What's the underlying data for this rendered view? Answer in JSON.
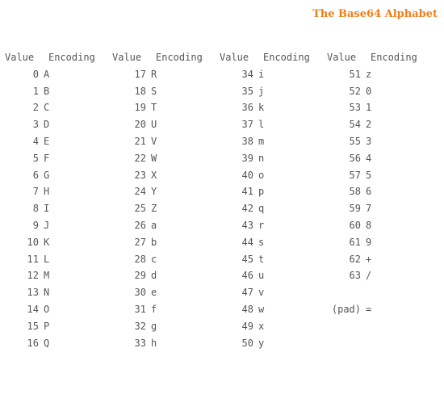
{
  "title": "The Base64 Alphabet",
  "headers": [
    "Value",
    "Encoding",
    "Value",
    "Encoding",
    "Value",
    "Encoding",
    "Value",
    "Encoding"
  ],
  "rows": [
    [
      {
        "v": "0",
        "e": "A"
      },
      {
        "v": "17",
        "e": "R"
      },
      {
        "v": "34",
        "e": "i"
      },
      {
        "v": "51",
        "e": "z"
      }
    ],
    [
      {
        "v": "1",
        "e": "B"
      },
      {
        "v": "18",
        "e": "S"
      },
      {
        "v": "35",
        "e": "j"
      },
      {
        "v": "52",
        "e": "0"
      }
    ],
    [
      {
        "v": "2",
        "e": "C"
      },
      {
        "v": "19",
        "e": "T"
      },
      {
        "v": "36",
        "e": "k"
      },
      {
        "v": "53",
        "e": "1"
      }
    ],
    [
      {
        "v": "3",
        "e": "D"
      },
      {
        "v": "20",
        "e": "U"
      },
      {
        "v": "37",
        "e": "l"
      },
      {
        "v": "54",
        "e": "2"
      }
    ],
    [
      {
        "v": "4",
        "e": "E"
      },
      {
        "v": "21",
        "e": "V"
      },
      {
        "v": "38",
        "e": "m"
      },
      {
        "v": "55",
        "e": "3"
      }
    ],
    [
      {
        "v": "5",
        "e": "F"
      },
      {
        "v": "22",
        "e": "W"
      },
      {
        "v": "39",
        "e": "n"
      },
      {
        "v": "56",
        "e": "4"
      }
    ],
    [
      {
        "v": "6",
        "e": "G"
      },
      {
        "v": "23",
        "e": "X"
      },
      {
        "v": "40",
        "e": "o"
      },
      {
        "v": "57",
        "e": "5"
      }
    ],
    [
      {
        "v": "7",
        "e": "H"
      },
      {
        "v": "24",
        "e": "Y"
      },
      {
        "v": "41",
        "e": "p"
      },
      {
        "v": "58",
        "e": "6"
      }
    ],
    [
      {
        "v": "8",
        "e": "I"
      },
      {
        "v": "25",
        "e": "Z"
      },
      {
        "v": "42",
        "e": "q"
      },
      {
        "v": "59",
        "e": "7"
      }
    ],
    [
      {
        "v": "9",
        "e": "J"
      },
      {
        "v": "26",
        "e": "a"
      },
      {
        "v": "43",
        "e": "r"
      },
      {
        "v": "60",
        "e": "8"
      }
    ],
    [
      {
        "v": "10",
        "e": "K"
      },
      {
        "v": "27",
        "e": "b"
      },
      {
        "v": "44",
        "e": "s"
      },
      {
        "v": "61",
        "e": "9"
      }
    ],
    [
      {
        "v": "11",
        "e": "L"
      },
      {
        "v": "28",
        "e": "c"
      },
      {
        "v": "45",
        "e": "t"
      },
      {
        "v": "62",
        "e": "+"
      }
    ],
    [
      {
        "v": "12",
        "e": "M"
      },
      {
        "v": "29",
        "e": "d"
      },
      {
        "v": "46",
        "e": "u"
      },
      {
        "v": "63",
        "e": "/"
      }
    ],
    [
      {
        "v": "13",
        "e": "N"
      },
      {
        "v": "30",
        "e": "e"
      },
      {
        "v": "47",
        "e": "v"
      },
      {
        "v": "",
        "e": ""
      }
    ],
    [
      {
        "v": "14",
        "e": "O"
      },
      {
        "v": "31",
        "e": "f"
      },
      {
        "v": "48",
        "e": "w"
      },
      {
        "v": "(pad)",
        "e": "="
      }
    ],
    [
      {
        "v": "15",
        "e": "P"
      },
      {
        "v": "32",
        "e": "g"
      },
      {
        "v": "49",
        "e": "x"
      },
      {
        "v": "",
        "e": ""
      }
    ],
    [
      {
        "v": "16",
        "e": "Q"
      },
      {
        "v": "33",
        "e": "h"
      },
      {
        "v": "50",
        "e": "y"
      },
      {
        "v": "",
        "e": ""
      }
    ]
  ],
  "colors": {
    "title": "#f07f1a",
    "text": "#555555",
    "background": "#ffffff"
  }
}
